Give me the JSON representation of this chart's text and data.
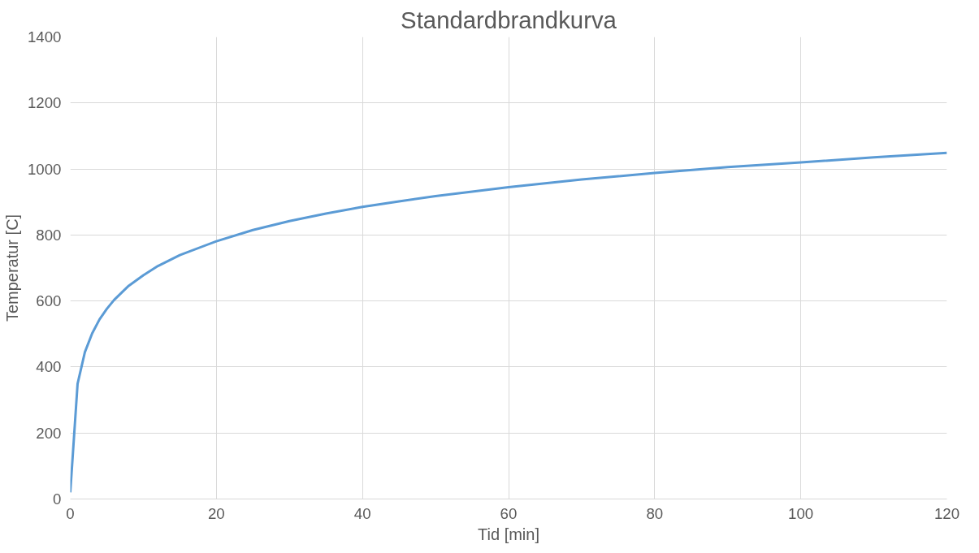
{
  "chart_data": {
    "type": "line",
    "title": "Standardbrandkurva",
    "xlabel": "Tid [min]",
    "ylabel": "Temperatur [C]",
    "x": [
      0,
      1,
      2,
      3,
      4,
      5,
      6,
      8,
      10,
      12,
      15,
      20,
      25,
      30,
      35,
      40,
      45,
      50,
      60,
      70,
      80,
      90,
      100,
      110,
      120
    ],
    "series": [
      {
        "color": "#5b9bd5",
        "values": [
          20,
          349,
          445,
          502,
          544,
          576,
          603,
          646,
          678,
          706,
          739,
          781,
          815,
          842,
          865,
          885,
          902,
          918,
          945,
          968,
          988,
          1006,
          1020,
          1035,
          1049
        ]
      }
    ],
    "xlim": [
      0,
      120
    ],
    "xticks": [
      0,
      20,
      40,
      60,
      80,
      100,
      120
    ],
    "ylim": [
      0,
      1400
    ],
    "yticks": [
      0,
      200,
      400,
      600,
      800,
      1000,
      1200,
      1400
    ],
    "grid": true,
    "marker": "none",
    "line_style": "solid"
  }
}
